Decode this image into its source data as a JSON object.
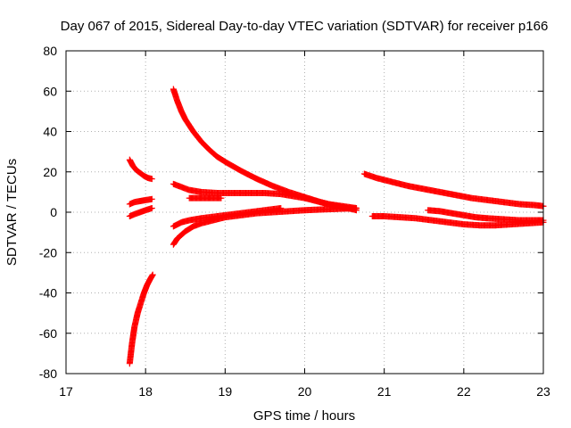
{
  "chart_data": {
    "type": "scatter",
    "title": "Day 067 of 2015, Sidereal Day-to-day VTEC variation (SDTVAR) for receiver p166",
    "xlabel": "GPS time / hours",
    "ylabel": "SDTVAR / TECUs",
    "xlim": [
      17,
      23
    ],
    "ylim": [
      -80,
      80
    ],
    "xticks": [
      "17",
      "18",
      "19",
      "20",
      "21",
      "22",
      "23"
    ],
    "yticks": [
      "-80",
      "-60",
      "-40",
      "-20",
      "0",
      "20",
      "40",
      "60",
      "80"
    ],
    "grid": true,
    "legend": "none",
    "marker": "plus",
    "color": "#ff0000",
    "series": [
      {
        "x": [
          17.8,
          17.84,
          17.88,
          17.93,
          17.98,
          18.03,
          18.08
        ],
        "y": [
          26,
          23,
          21,
          19.5,
          18,
          17,
          16.5
        ]
      },
      {
        "x": [
          17.8,
          17.86,
          17.93,
          18.0,
          18.08
        ],
        "y": [
          4,
          5,
          5.5,
          6,
          6.5
        ]
      },
      {
        "x": [
          17.8,
          17.86,
          17.93,
          18.0,
          18.08
        ],
        "y": [
          -2,
          -1,
          0,
          1,
          2
        ]
      },
      {
        "x": [
          17.8,
          17.83,
          17.86,
          17.9,
          17.94,
          17.98,
          18.02,
          18.06,
          18.09
        ],
        "y": [
          -75,
          -65,
          -57,
          -50,
          -45,
          -40,
          -36,
          -33,
          -31
        ]
      },
      {
        "x": [
          18.35,
          18.4,
          18.45,
          18.5,
          18.6,
          18.7,
          18.8,
          18.9,
          19.0,
          19.2,
          19.4,
          19.6,
          19.8,
          20.0,
          20.2,
          20.4,
          20.6,
          20.65
        ],
        "y": [
          61,
          55,
          50,
          46,
          40,
          35,
          31,
          27.5,
          25,
          20.5,
          16.5,
          13,
          10,
          7.5,
          5,
          3,
          1.5,
          1
        ]
      },
      {
        "x": [
          18.35,
          18.45,
          18.55,
          18.7,
          18.9,
          19.1,
          19.3,
          19.5,
          19.7,
          20.0,
          20.3,
          20.65
        ],
        "y": [
          14,
          12.5,
          11,
          10,
          9.5,
          9.5,
          9.5,
          9.5,
          9,
          7,
          4,
          2
        ]
      },
      {
        "x": [
          18.55,
          18.65,
          18.75,
          18.85,
          18.95
        ],
        "y": [
          7,
          7,
          7,
          7,
          7
        ]
      },
      {
        "x": [
          18.35,
          18.45,
          18.55,
          18.7,
          18.9,
          19.1,
          19.3,
          19.5,
          19.7
        ],
        "y": [
          -7,
          -5,
          -4,
          -3,
          -2,
          -1,
          0,
          1,
          2
        ]
      },
      {
        "x": [
          18.35,
          18.4,
          18.5,
          18.6,
          18.7,
          18.8,
          18.9,
          19.0,
          19.2,
          19.4,
          19.6,
          19.8,
          20.0,
          20.3,
          20.65
        ],
        "y": [
          -16,
          -13,
          -9.5,
          -7,
          -5.5,
          -4.5,
          -3.5,
          -2.5,
          -1.5,
          -0.5,
          0,
          0.5,
          1,
          1.5,
          2
        ]
      },
      {
        "x": [
          20.75,
          20.9,
          21.1,
          21.3,
          21.5,
          21.7,
          21.9,
          22.1,
          22.3,
          22.5,
          22.7,
          22.9,
          23.0
        ],
        "y": [
          19,
          17,
          15,
          13,
          11.5,
          10,
          8.5,
          7,
          6,
          5,
          4,
          3.5,
          3
        ]
      },
      {
        "x": [
          20.85,
          21.0,
          21.2,
          21.4,
          21.6,
          21.8,
          22.0,
          22.2,
          22.4,
          22.6,
          22.8,
          23.0
        ],
        "y": [
          -2,
          -2,
          -2.5,
          -3,
          -4,
          -5,
          -6,
          -6.5,
          -6.5,
          -6,
          -5.5,
          -5
        ]
      },
      {
        "x": [
          21.55,
          21.7,
          21.85,
          22.0,
          22.15,
          22.3,
          22.5,
          22.7,
          22.9,
          23.0
        ],
        "y": [
          1,
          0.5,
          -0.5,
          -1.5,
          -2.5,
          -3,
          -3.5,
          -4,
          -4,
          -4
        ]
      }
    ]
  }
}
